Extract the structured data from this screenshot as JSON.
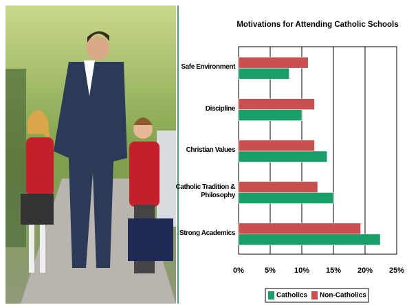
{
  "chart_data": {
    "type": "hbar",
    "title": "Motivations for Attending Catholic Schools",
    "categories": [
      "Safe Environment",
      "Discipline",
      "Christian Values",
      "Catholic Tradition & Philosophy",
      "Strong Academics"
    ],
    "series": [
      {
        "name": "Catholics",
        "color": "#1a9e6a",
        "values": [
          8,
          10,
          14,
          15,
          22.4
        ]
      },
      {
        "name": "Non-Catholics",
        "color": "#c9504f",
        "values": [
          11,
          12,
          12,
          12.5,
          19.3
        ]
      }
    ],
    "xlim": [
      0,
      25
    ],
    "xticks": [
      {
        "value": 0,
        "label": "0%"
      },
      {
        "value": 5,
        "label": "5%"
      },
      {
        "value": 10,
        "label": "10%"
      },
      {
        "value": 15,
        "label": "15%"
      },
      {
        "value": 20,
        "label": "20%"
      },
      {
        "value": 25,
        "label": "25%"
      }
    ],
    "grid": true,
    "legend": "bottom"
  }
}
